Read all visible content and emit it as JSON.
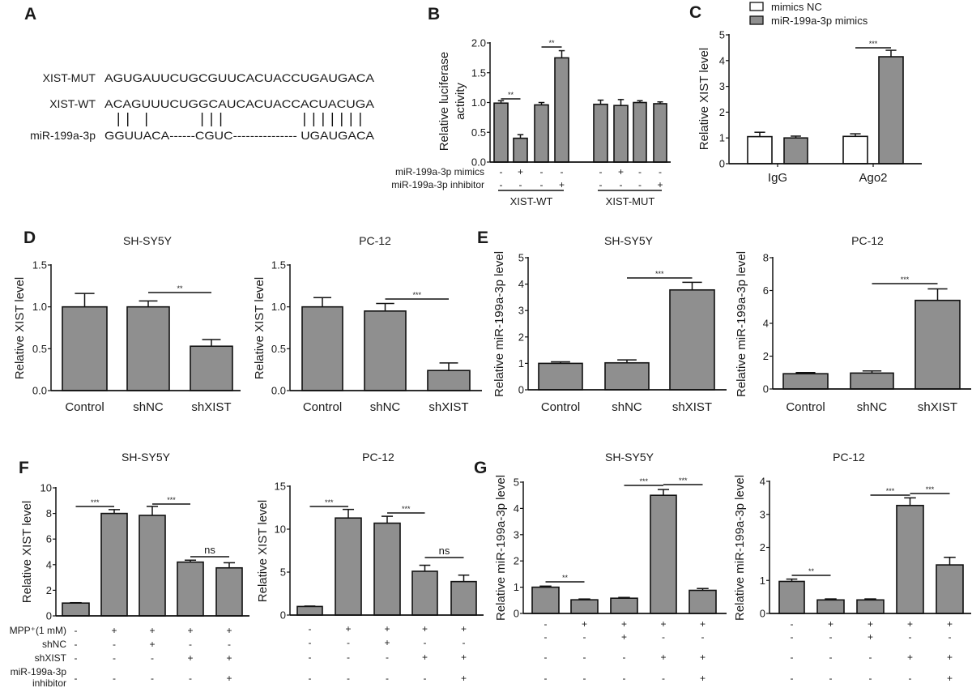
{
  "panel_letters": {
    "A": "A",
    "B": "B",
    "C": "C",
    "D": "D",
    "E": "E",
    "F": "F",
    "G": "G"
  },
  "sequence_panel": {
    "rows": [
      {
        "label": "XIST-MUT",
        "seq": "AGUGAUUCUGCGUUCACUACCUGAUGACA"
      },
      {
        "label": "XIST-WT",
        "seq": "ACAGUUUCUGGCAUCACUACCACUACUGA"
      },
      {
        "label": "miR-199a-3p",
        "seq": "GGUUACA------CGUC--------------- UGAUGACA"
      }
    ],
    "paired_positions_in_wt": [
      1,
      2,
      4,
      10,
      11,
      12,
      21,
      22,
      23,
      24,
      25,
      26,
      27
    ]
  },
  "chart_data": [
    {
      "panel": "B",
      "type": "bar",
      "title": "",
      "ylabel": [
        "Relative luciferase",
        "activity"
      ],
      "ylim": [
        0,
        2
      ],
      "ticks": [
        0,
        0.5,
        1,
        1.5,
        2
      ],
      "tick_labels": [
        "0.0",
        "0.5",
        "1.0",
        "1.5",
        "2.0"
      ],
      "values": [
        0.99,
        0.4,
        0.96,
        1.75,
        0.97,
        0.95,
        1.0,
        0.98
      ],
      "errors": [
        0.04,
        0.06,
        0.04,
        0.12,
        0.07,
        0.1,
        0.03,
        0.03
      ],
      "bar_color": "#8f8f8f",
      "significance": [
        {
          "bars": [
            0,
            1
          ],
          "label": "**"
        },
        {
          "bars": [
            2,
            3
          ],
          "label": "**"
        }
      ],
      "condition_rows": [
        {
          "label": "miR-199a-3p mimics",
          "values": [
            "-",
            "+",
            "-",
            "-",
            "-",
            "+",
            "-",
            "-"
          ]
        },
        {
          "label": "miR-199a-3p inhibitor",
          "values": [
            "-",
            "-",
            "-",
            "+",
            "-",
            "-",
            "-",
            "+"
          ]
        }
      ],
      "groups": [
        {
          "label": "XIST-WT",
          "bars": [
            0,
            3
          ]
        },
        {
          "label": "XIST-MUT",
          "bars": [
            4,
            7
          ]
        }
      ]
    },
    {
      "panel": "C",
      "type": "bar",
      "title": "",
      "ylabel": "Relative XIST level",
      "ylim": [
        0,
        5
      ],
      "ticks": [
        0,
        1,
        2,
        3,
        4,
        5
      ],
      "tick_labels": [
        "0",
        "1",
        "2",
        "3",
        "4",
        "5"
      ],
      "categories": [
        "IgG",
        "Ago2"
      ],
      "series": [
        {
          "name": "mimics NC",
          "values": [
            1.05,
            1.06
          ],
          "errors": [
            0.17,
            0.1
          ],
          "color": "#ffffff"
        },
        {
          "name": "miR-199a-3p mimics",
          "values": [
            1.0,
            4.15
          ],
          "errors": [
            0.07,
            0.25
          ],
          "color": "#8f8f8f"
        }
      ],
      "legend": "top",
      "significance": [
        {
          "bars": [
            2,
            3
          ],
          "label": "***"
        }
      ]
    },
    {
      "panel": "D",
      "type": "bar",
      "title": "SH-SY5Y",
      "ylabel": "Relative XIST level",
      "ylim": [
        0,
        1.5
      ],
      "ticks": [
        0,
        0.5,
        1,
        1.5
      ],
      "tick_labels": [
        "0.0",
        "0.5",
        "1.0",
        "1.5"
      ],
      "categories": [
        "Control",
        "shNC",
        "shXIST"
      ],
      "values": [
        1.0,
        1.0,
        0.53
      ],
      "errors": [
        0.16,
        0.07,
        0.08
      ],
      "bar_color": "#8f8f8f",
      "significance": [
        {
          "bars": [
            1,
            2
          ],
          "label": "**"
        }
      ]
    },
    {
      "panel": "D",
      "type": "bar",
      "title": "PC-12",
      "ylabel": "Relative XIST level",
      "ylim": [
        0,
        1.5
      ],
      "ticks": [
        0,
        0.5,
        1,
        1.5
      ],
      "tick_labels": [
        "0.0",
        "0.5",
        "1.0",
        "1.5"
      ],
      "categories": [
        "Control",
        "shNC",
        "shXIST"
      ],
      "values": [
        1.0,
        0.95,
        0.24
      ],
      "errors": [
        0.11,
        0.09,
        0.09
      ],
      "bar_color": "#8f8f8f",
      "significance": [
        {
          "bars": [
            1,
            2
          ],
          "label": "***"
        }
      ]
    },
    {
      "panel": "E",
      "type": "bar",
      "title": "SH-SY5Y",
      "ylabel": "Relative miR-199a-3p level",
      "ylim": [
        0,
        5
      ],
      "ticks": [
        0,
        1,
        2,
        3,
        4,
        5
      ],
      "tick_labels": [
        "0",
        "1",
        "2",
        "3",
        "4",
        "5"
      ],
      "categories": [
        "Control",
        "shNC",
        "shXIST"
      ],
      "values": [
        1.0,
        1.02,
        3.78
      ],
      "errors": [
        0.06,
        0.11,
        0.29
      ],
      "bar_color": "#8f8f8f",
      "significance": [
        {
          "bars": [
            1,
            2
          ],
          "label": "***"
        }
      ]
    },
    {
      "panel": "E",
      "type": "bar",
      "title": "PC-12",
      "ylabel": "Relative miR-199a-3p level",
      "ylim": [
        0,
        8
      ],
      "ticks": [
        0,
        2,
        4,
        6,
        8
      ],
      "tick_labels": [
        "0",
        "2",
        "4",
        "6",
        "8"
      ],
      "categories": [
        "Control",
        "shNC",
        "shXIST"
      ],
      "values": [
        0.93,
        0.97,
        5.4
      ],
      "errors": [
        0.07,
        0.13,
        0.7
      ],
      "bar_color": "#8f8f8f",
      "significance": [
        {
          "bars": [
            1,
            2
          ],
          "label": "***"
        }
      ]
    },
    {
      "panel": "F",
      "type": "bar",
      "title": "SH-SY5Y",
      "ylabel": "Relative XIST level",
      "ylim": [
        0,
        10
      ],
      "ticks": [
        0,
        2,
        4,
        6,
        8,
        10
      ],
      "tick_labels": [
        "0",
        "2",
        "4",
        "6",
        "8",
        "10"
      ],
      "values": [
        1.0,
        8.0,
        7.85,
        4.2,
        3.75
      ],
      "errors": [
        0.03,
        0.3,
        0.7,
        0.15,
        0.4
      ],
      "bar_color": "#8f8f8f",
      "significance": [
        {
          "bars": [
            0,
            1
          ],
          "label": "***"
        },
        {
          "bars": [
            2,
            3
          ],
          "label": "***"
        },
        {
          "bars": [
            3,
            4
          ],
          "label": "ns"
        }
      ],
      "condition_rows": [
        {
          "label": "MPP⁺(1 mM)",
          "values": [
            "-",
            "+",
            "+",
            "+",
            "+"
          ]
        },
        {
          "label": "shNC",
          "values": [
            "-",
            "-",
            "+",
            "-",
            "-"
          ]
        },
        {
          "label": "shXIST",
          "values": [
            "-",
            "-",
            "-",
            "+",
            "+"
          ]
        },
        {
          "label": [
            "miR-199a-3p",
            "inhibitor"
          ],
          "values": [
            "-",
            "-",
            "-",
            "-",
            "+"
          ]
        }
      ]
    },
    {
      "panel": "F",
      "type": "bar",
      "title": "PC-12",
      "ylabel": "Relative XIST level",
      "ylim": [
        0,
        15
      ],
      "ticks": [
        0,
        5,
        10,
        15
      ],
      "tick_labels": [
        "0",
        "5",
        "10",
        "15"
      ],
      "values": [
        1.0,
        11.3,
        10.7,
        5.1,
        3.9
      ],
      "errors": [
        0.05,
        1.0,
        0.8,
        0.7,
        0.75
      ],
      "bar_color": "#8f8f8f",
      "significance": [
        {
          "bars": [
            0,
            1
          ],
          "label": "***"
        },
        {
          "bars": [
            2,
            3
          ],
          "label": "***"
        },
        {
          "bars": [
            3,
            4
          ],
          "label": "ns"
        }
      ],
      "condition_rows": [
        {
          "values": [
            "-",
            "+",
            "+",
            "+",
            "+"
          ]
        },
        {
          "values": [
            "-",
            "-",
            "+",
            "-",
            "-"
          ]
        },
        {
          "values": [
            "-",
            "-",
            "-",
            "+",
            "+"
          ]
        },
        {
          "values": [
            "-",
            "-",
            "-",
            "-",
            "+"
          ]
        }
      ]
    },
    {
      "panel": "G",
      "type": "bar",
      "title": "SH-SY5Y",
      "ylabel": "Relative miR-199a-3p level",
      "ylim": [
        0,
        5
      ],
      "ticks": [
        0,
        1,
        2,
        3,
        4,
        5
      ],
      "tick_labels": [
        "0",
        "1",
        "2",
        "3",
        "4",
        "5"
      ],
      "values": [
        1.0,
        0.52,
        0.58,
        4.5,
        0.88
      ],
      "errors": [
        0.04,
        0.03,
        0.03,
        0.22,
        0.07
      ],
      "bar_color": "#8f8f8f",
      "significance": [
        {
          "bars": [
            0,
            1
          ],
          "label": "**"
        },
        {
          "bars": [
            2,
            3
          ],
          "label": "***"
        },
        {
          "bars": [
            3,
            4
          ],
          "label": "***"
        }
      ],
      "condition_rows": [
        {
          "values": [
            "-",
            "+",
            "+",
            "+",
            "+"
          ]
        },
        {
          "values": [
            "-",
            "-",
            "+",
            "-",
            "-"
          ]
        },
        {
          "values": [
            "-",
            "-",
            "-",
            "+",
            "+"
          ]
        },
        {
          "values": [
            "-",
            "-",
            "-",
            "-",
            "+"
          ]
        }
      ]
    },
    {
      "panel": "G",
      "type": "bar",
      "title": "PC-12",
      "ylabel": "Relative miR-199a-3p level",
      "ylim": [
        0,
        4
      ],
      "ticks": [
        0,
        1,
        2,
        3,
        4
      ],
      "tick_labels": [
        "0",
        "1",
        "2",
        "3",
        "4"
      ],
      "values": [
        0.97,
        0.41,
        0.41,
        3.27,
        1.47
      ],
      "errors": [
        0.07,
        0.03,
        0.03,
        0.23,
        0.23
      ],
      "bar_color": "#8f8f8f",
      "significance": [
        {
          "bars": [
            0,
            1
          ],
          "label": "**"
        },
        {
          "bars": [
            2,
            3
          ],
          "label": "***"
        },
        {
          "bars": [
            3,
            4
          ],
          "label": "***"
        }
      ],
      "condition_rows": [
        {
          "values": [
            "-",
            "+",
            "+",
            "+",
            "+"
          ]
        },
        {
          "values": [
            "-",
            "-",
            "+",
            "-",
            "-"
          ]
        },
        {
          "values": [
            "-",
            "-",
            "-",
            "+",
            "+"
          ]
        },
        {
          "values": [
            "-",
            "-",
            "-",
            "-",
            "+"
          ]
        }
      ]
    }
  ]
}
